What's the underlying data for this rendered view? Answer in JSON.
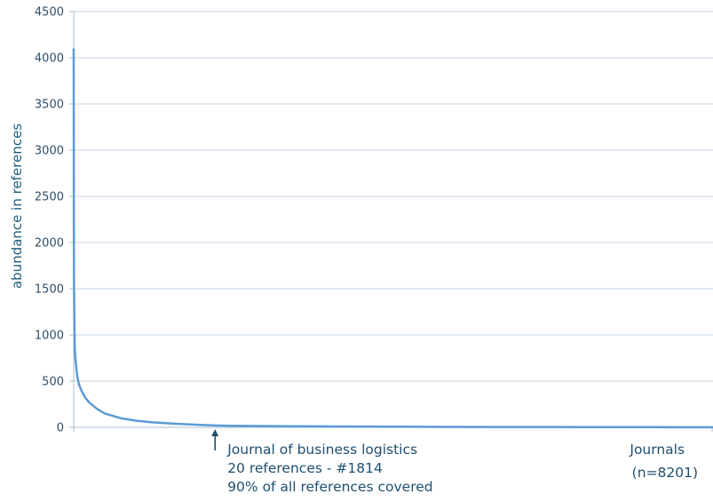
{
  "chart_data": {
    "type": "line",
    "ylabel": "abundance in references",
    "xlabel_lines": [
      "Journals",
      "(n=8201)"
    ],
    "ylim": [
      0,
      4500
    ],
    "xlim": [
      1,
      8201
    ],
    "yticks": [
      0,
      500,
      1000,
      1500,
      2000,
      2500,
      3000,
      3500,
      4000,
      4500
    ],
    "grid": "horizontal",
    "line_color": "#5b9bd5",
    "series": [
      {
        "x": [
          1,
          2,
          3,
          5,
          8,
          10,
          15,
          20,
          30,
          40,
          50,
          70,
          100,
          150,
          200,
          300,
          400,
          600,
          800,
          1000,
          1300,
          1600,
          1814,
          2200,
          2800,
          3500,
          4500,
          5500,
          6500,
          7500,
          8201
        ],
        "values": [
          4100,
          3400,
          2300,
          1550,
          1300,
          1100,
          850,
          780,
          680,
          600,
          540,
          460,
          400,
          320,
          270,
          200,
          150,
          100,
          72,
          55,
          40,
          28,
          20,
          16,
          12,
          9,
          6,
          4,
          3,
          2,
          1
        ]
      }
    ],
    "annotation": {
      "x": 1814,
      "lines": [
        "Journal of business logistics",
        "20 references - #1814",
        "90% of all references covered"
      ]
    }
  }
}
